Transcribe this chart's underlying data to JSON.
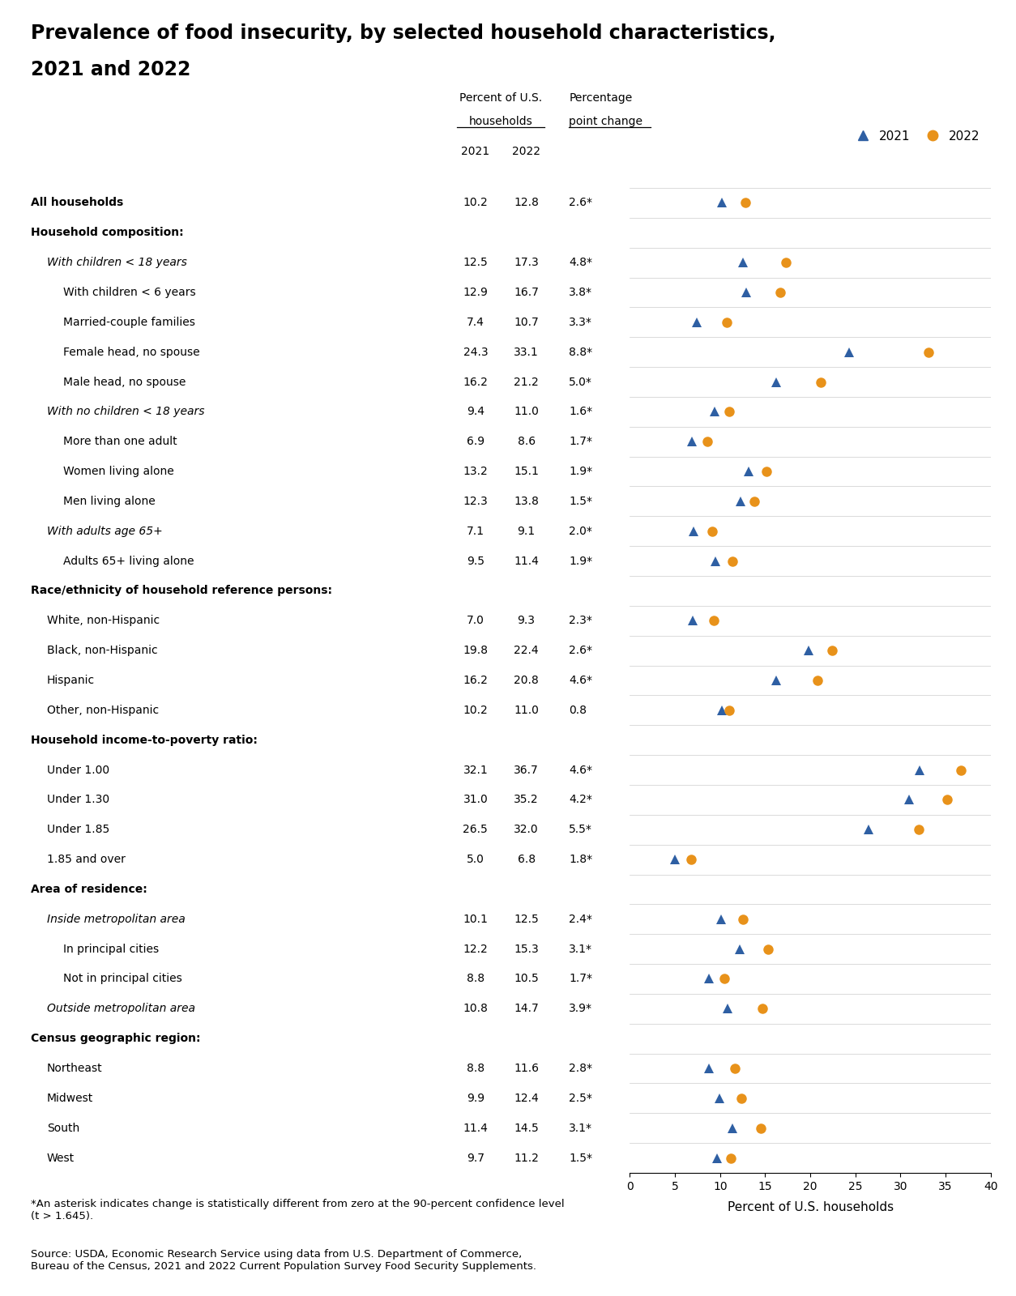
{
  "title_line1": "Prevalence of food insecurity, by selected household characteristics,",
  "title_line2": "2021 and 2022",
  "footnote1": "*An asterisk indicates change is statistically different from zero at the 90-percent confidence level\n(t > 1.645).",
  "footnote2": "Source: USDA, Economic Research Service using data from U.S. Department of Commerce,\nBureau of the Census, 2021 and 2022 Current Population Survey Food Security Supplements.",
  "xlabel": "Percent of U.S. households",
  "xlim": [
    0,
    40
  ],
  "xticks": [
    0,
    5,
    10,
    15,
    20,
    25,
    30,
    35,
    40
  ],
  "color_2021": "#2E5FA3",
  "color_2022": "#E8921A",
  "rows": [
    {
      "label": "All households",
      "indent": 0,
      "style": "bold",
      "v2021": 10.2,
      "v2022": 12.8,
      "chg": "2.6*"
    },
    {
      "label": "Household composition:",
      "indent": 0,
      "style": "bold",
      "v2021": null,
      "v2022": null,
      "chg": ""
    },
    {
      "label": "With children < 18 years",
      "indent": 1,
      "style": "italic",
      "v2021": 12.5,
      "v2022": 17.3,
      "chg": "4.8*"
    },
    {
      "label": "With children < 6 years",
      "indent": 2,
      "style": "normal",
      "v2021": 12.9,
      "v2022": 16.7,
      "chg": "3.8*"
    },
    {
      "label": "Married-couple families",
      "indent": 2,
      "style": "normal",
      "v2021": 7.4,
      "v2022": 10.7,
      "chg": "3.3*"
    },
    {
      "label": "Female head, no spouse",
      "indent": 2,
      "style": "normal",
      "v2021": 24.3,
      "v2022": 33.1,
      "chg": "8.8*"
    },
    {
      "label": "Male head, no spouse",
      "indent": 2,
      "style": "normal",
      "v2021": 16.2,
      "v2022": 21.2,
      "chg": "5.0*"
    },
    {
      "label": "With no children < 18 years",
      "indent": 1,
      "style": "italic",
      "v2021": 9.4,
      "v2022": 11.0,
      "chg": "1.6*"
    },
    {
      "label": "More than one adult",
      "indent": 2,
      "style": "normal",
      "v2021": 6.9,
      "v2022": 8.6,
      "chg": "1.7*"
    },
    {
      "label": "Women living alone",
      "indent": 2,
      "style": "normal",
      "v2021": 13.2,
      "v2022": 15.1,
      "chg": "1.9*"
    },
    {
      "label": "Men living alone",
      "indent": 2,
      "style": "normal",
      "v2021": 12.3,
      "v2022": 13.8,
      "chg": "1.5*"
    },
    {
      "label": "With adults age 65+",
      "indent": 1,
      "style": "italic",
      "v2021": 7.1,
      "v2022": 9.1,
      "chg": "2.0*"
    },
    {
      "label": "Adults 65+ living alone",
      "indent": 2,
      "style": "normal",
      "v2021": 9.5,
      "v2022": 11.4,
      "chg": "1.9*"
    },
    {
      "label": "Race/ethnicity of household reference persons:",
      "indent": 0,
      "style": "bold",
      "v2021": null,
      "v2022": null,
      "chg": ""
    },
    {
      "label": "White, non-Hispanic",
      "indent": 1,
      "style": "normal",
      "v2021": 7.0,
      "v2022": 9.3,
      "chg": "2.3*"
    },
    {
      "label": "Black, non-Hispanic",
      "indent": 1,
      "style": "normal",
      "v2021": 19.8,
      "v2022": 22.4,
      "chg": "2.6*"
    },
    {
      "label": "Hispanic",
      "indent": 1,
      "style": "normal",
      "v2021": 16.2,
      "v2022": 20.8,
      "chg": "4.6*"
    },
    {
      "label": "Other, non-Hispanic",
      "indent": 1,
      "style": "normal",
      "v2021": 10.2,
      "v2022": 11.0,
      "chg": "0.8"
    },
    {
      "label": "Household income-to-poverty ratio:",
      "indent": 0,
      "style": "bold",
      "v2021": null,
      "v2022": null,
      "chg": ""
    },
    {
      "label": "Under 1.00",
      "indent": 1,
      "style": "normal",
      "v2021": 32.1,
      "v2022": 36.7,
      "chg": "4.6*"
    },
    {
      "label": "Under 1.30",
      "indent": 1,
      "style": "normal",
      "v2021": 31.0,
      "v2022": 35.2,
      "chg": "4.2*"
    },
    {
      "label": "Under 1.85",
      "indent": 1,
      "style": "normal",
      "v2021": 26.5,
      "v2022": 32.0,
      "chg": "5.5*"
    },
    {
      "label": "1.85 and over",
      "indent": 1,
      "style": "normal",
      "v2021": 5.0,
      "v2022": 6.8,
      "chg": "1.8*"
    },
    {
      "label": "Area of residence:",
      "indent": 0,
      "style": "bold",
      "v2021": null,
      "v2022": null,
      "chg": ""
    },
    {
      "label": "Inside metropolitan area",
      "indent": 1,
      "style": "italic",
      "v2021": 10.1,
      "v2022": 12.5,
      "chg": "2.4*"
    },
    {
      "label": "In principal cities",
      "indent": 2,
      "style": "normal",
      "v2021": 12.2,
      "v2022": 15.3,
      "chg": "3.1*"
    },
    {
      "label": "Not in principal cities",
      "indent": 2,
      "style": "normal",
      "v2021": 8.8,
      "v2022": 10.5,
      "chg": "1.7*"
    },
    {
      "label": "Outside metropolitan area",
      "indent": 1,
      "style": "italic",
      "v2021": 10.8,
      "v2022": 14.7,
      "chg": "3.9*"
    },
    {
      "label": "Census geographic region:",
      "indent": 0,
      "style": "bold",
      "v2021": null,
      "v2022": null,
      "chg": ""
    },
    {
      "label": "Northeast",
      "indent": 1,
      "style": "normal",
      "v2021": 8.8,
      "v2022": 11.6,
      "chg": "2.8*"
    },
    {
      "label": "Midwest",
      "indent": 1,
      "style": "normal",
      "v2021": 9.9,
      "v2022": 12.4,
      "chg": "2.5*"
    },
    {
      "label": "South",
      "indent": 1,
      "style": "normal",
      "v2021": 11.4,
      "v2022": 14.5,
      "chg": "3.1*"
    },
    {
      "label": "West",
      "indent": 1,
      "style": "normal",
      "v2021": 9.7,
      "v2022": 11.2,
      "chg": "1.5*"
    }
  ]
}
